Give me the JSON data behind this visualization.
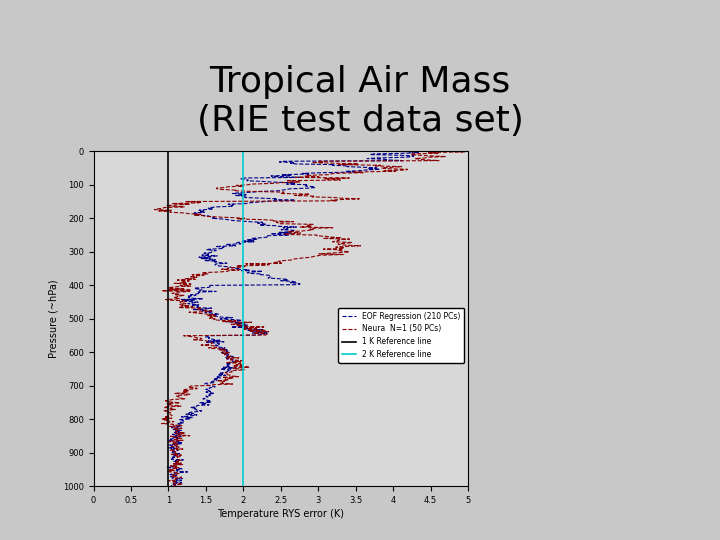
{
  "title": "Tropical Air Mass\n(RIE test data set)",
  "title_fontsize": 26,
  "xlabel": "Temperature RYS error (K)",
  "ylabel": "Pressure (~hPa)",
  "xlim": [
    0,
    5
  ],
  "ylim": [
    1000,
    0
  ],
  "xticks": [
    0,
    0.5,
    1,
    1.5,
    2,
    2.5,
    3,
    3.5,
    4,
    4.5,
    5
  ],
  "xtick_labels": [
    "0",
    "0.5",
    "1",
    "1.5",
    "2",
    "2.5",
    "3",
    "3.5",
    "4",
    "4.5",
    "5"
  ],
  "yticks": [
    0,
    100,
    200,
    300,
    400,
    500,
    600,
    700,
    800,
    900,
    1000
  ],
  "ytick_labels": [
    "0",
    "100",
    "200",
    "300",
    "400",
    "500",
    "600",
    "700",
    "800",
    "900",
    "1000"
  ],
  "ref_line_1K": 1.0,
  "ref_line_2K": 2.0,
  "fig_bg_color": "#c8c8c8",
  "plot_area_bg": "#d8d8d8",
  "legend_texts": [
    "EOF Regression (210 PCs)",
    "Neura  N=1 (50 PCs)",
    "1 K Reference line",
    "2 K Reference line"
  ],
  "eof_color": "#00008B",
  "neura_color": "#8B0000",
  "ref1_color": "#000000",
  "ref2_color": "#00CCCC",
  "title_color": "#000000"
}
